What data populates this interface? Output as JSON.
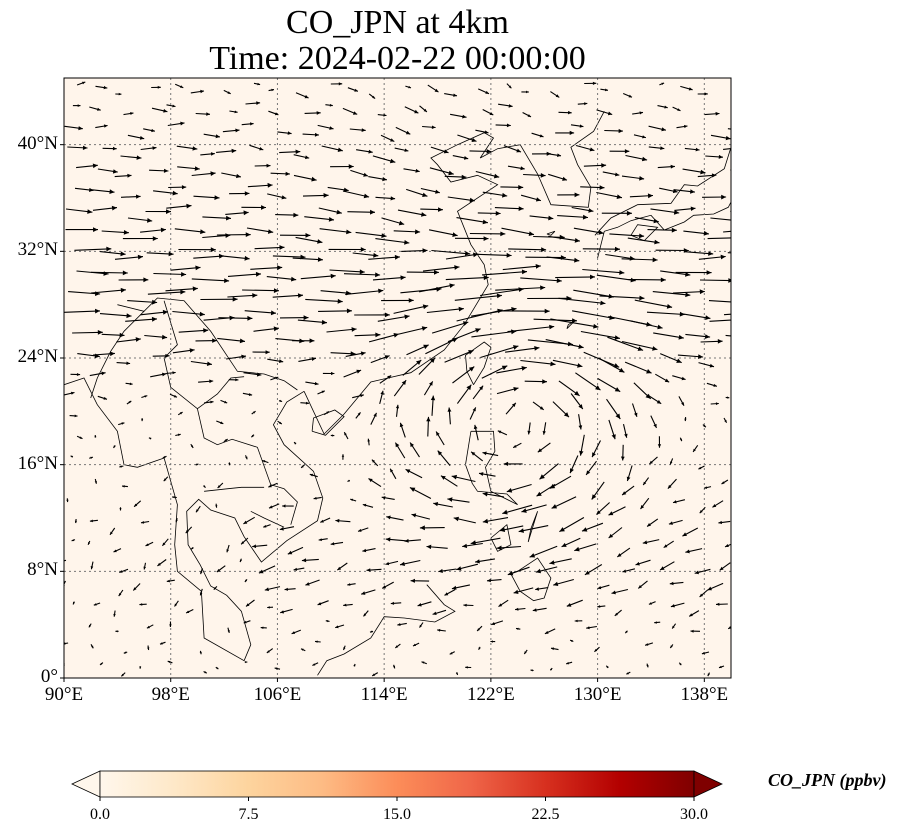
{
  "title": {
    "line1": "CO_JPN at 4km",
    "line2": "Time: 2024-02-22 00:00:00"
  },
  "map": {
    "lon_range": [
      90,
      140
    ],
    "lat_range": [
      0,
      45
    ],
    "lon_ticks": [
      "90°E",
      "98°E",
      "106°E",
      "114°E",
      "122°E",
      "130°E",
      "138°E"
    ],
    "lat_ticks": [
      "0°",
      "8°N",
      "16°N",
      "24°N",
      "32°N",
      "40°N"
    ],
    "gridlines": true,
    "background_color": "#fff5eb",
    "coastline_color": "#000000",
    "vector_color": "#000000",
    "layers": [
      "coastlines",
      "country-borders",
      "wind-vectors",
      "co-concentration-field"
    ]
  },
  "colorbar": {
    "label": "CO_JPN (ppbv)",
    "colormap": "OrRd",
    "range": [
      0,
      30
    ],
    "ticks": [
      "0.0",
      "7.5",
      "15.0",
      "22.5",
      "30.0"
    ],
    "extend": "both",
    "colors": [
      "#fff7ec",
      "#fee8c8",
      "#fdd49e",
      "#fdbb84",
      "#fc8d59",
      "#ef6548",
      "#d7301f",
      "#b30000",
      "#7f0000"
    ]
  }
}
